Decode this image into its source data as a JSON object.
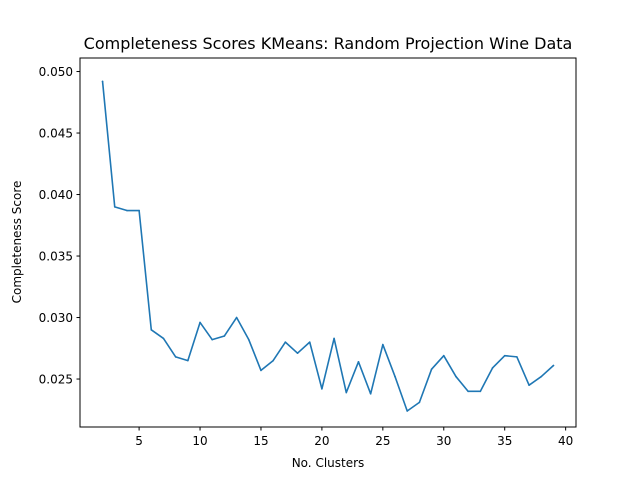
{
  "chart_data": {
    "type": "line",
    "title": "Completeness Scores KMeans: Random Projection Wine Data",
    "xlabel": "No. Clusters",
    "ylabel": "Completeness Score",
    "xlim": [
      0.15,
      40.85
    ],
    "ylim": [
      0.0211,
      0.0511
    ],
    "xticks": [
      5,
      10,
      15,
      20,
      25,
      30,
      35,
      40
    ],
    "yticks": [
      0.025,
      0.03,
      0.035,
      0.04,
      0.045,
      0.05
    ],
    "ytick_labels": [
      "0.025",
      "0.030",
      "0.035",
      "0.040",
      "0.045",
      "0.050"
    ],
    "grid": false,
    "series": [
      {
        "color": "#1f77b4",
        "x": [
          2,
          3,
          4,
          5,
          6,
          7,
          8,
          9,
          10,
          11,
          12,
          13,
          14,
          15,
          16,
          17,
          18,
          19,
          20,
          21,
          22,
          23,
          24,
          25,
          26,
          27,
          28,
          29,
          30,
          31,
          32,
          33,
          34,
          35,
          36,
          37,
          38,
          39
        ],
        "y": [
          0.0492,
          0.039,
          0.0387,
          0.0387,
          0.029,
          0.0283,
          0.0268,
          0.0265,
          0.0296,
          0.0282,
          0.0285,
          0.03,
          0.0282,
          0.0257,
          0.0265,
          0.028,
          0.0271,
          0.028,
          0.0242,
          0.0283,
          0.0239,
          0.0264,
          0.0238,
          0.0278,
          0.0252,
          0.0224,
          0.0231,
          0.0258,
          0.0269,
          0.0252,
          0.024,
          0.024,
          0.0259,
          0.0269,
          0.0268,
          0.0245,
          0.0252,
          0.0261
        ]
      }
    ]
  }
}
